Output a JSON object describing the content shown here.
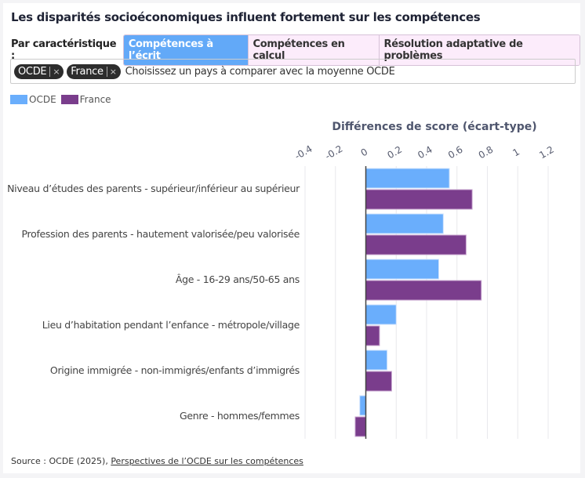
{
  "title": "Les disparités socioéconomiques influent fortement sur les compétences",
  "filter": {
    "label": "Par caractéristique :",
    "tabs": [
      {
        "label": "Compétences à l’écrit",
        "active": true
      },
      {
        "label": "Compétences en calcul",
        "active": false
      },
      {
        "label": "Résolution adaptative de problèmes",
        "active": false
      }
    ]
  },
  "country_select": {
    "chips": [
      "OCDE",
      "France"
    ],
    "remove_icon": "×",
    "placeholder": "Choisissez un pays à comparer avec la moyenne OCDE"
  },
  "source": {
    "prefix": "Source : OCDE (2025), ",
    "link": "Perspectives de l’OCDE sur les compétences"
  },
  "chart_data": {
    "type": "bar",
    "orientation": "horizontal",
    "title": "Différences de score (écart-type)",
    "categories": [
      "Niveau d’études des parents - supérieur/inférieur au supérieur",
      "Profession des parents - hautement valorisée/peu valorisée",
      "Âge - 16-29 ans/50-65 ans",
      "Lieu d’habitation pendant l’enfance - métropole/village",
      "Origine immigrée - non-immigrés/enfants d’immigrés",
      "Genre - hommes/femmes"
    ],
    "series": [
      {
        "name": "OCDE",
        "color": "#6aaefc",
        "values": [
          0.55,
          0.51,
          0.48,
          0.2,
          0.14,
          -0.04
        ]
      },
      {
        "name": "France",
        "color": "#7a3d8c",
        "values": [
          0.7,
          0.66,
          0.76,
          0.09,
          0.17,
          -0.07
        ]
      }
    ],
    "xlim": [
      -0.4,
      1.2
    ],
    "xticks": [
      "-0.4",
      "-0.2",
      "0",
      "0.2",
      "0.4",
      "0.6",
      "0.8",
      "1",
      "1.2"
    ],
    "grid": true,
    "legend": "top-left"
  }
}
